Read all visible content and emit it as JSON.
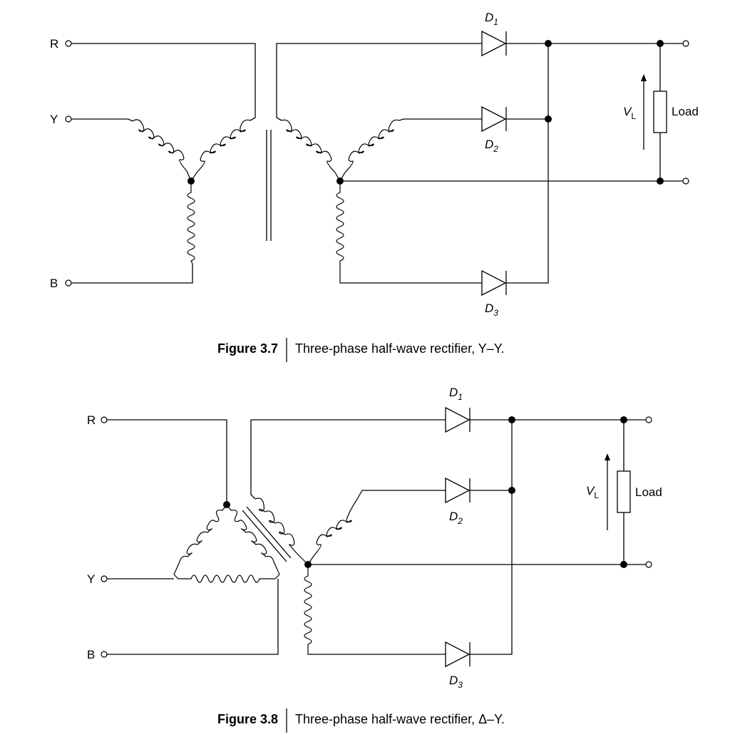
{
  "figures": [
    {
      "number": "Figure 3.7",
      "caption": "Three-phase half-wave rectifier, Y–Y.",
      "inputs": [
        "R",
        "Y",
        "B"
      ],
      "diodes": [
        {
          "letter": "D",
          "sub": "1"
        },
        {
          "letter": "D",
          "sub": "2"
        },
        {
          "letter": "D",
          "sub": "3"
        }
      ],
      "voltage": {
        "letter": "V",
        "sub": "L"
      },
      "load": "Load"
    },
    {
      "number": "Figure 3.8",
      "caption": "Three-phase half-wave rectifier, Δ–Y.",
      "inputs": [
        "R",
        "Y",
        "B"
      ],
      "diodes": [
        {
          "letter": "D",
          "sub": "1"
        },
        {
          "letter": "D",
          "sub": "2"
        },
        {
          "letter": "D",
          "sub": "3"
        }
      ],
      "voltage": {
        "letter": "V",
        "sub": "L"
      },
      "load": "Load"
    }
  ]
}
